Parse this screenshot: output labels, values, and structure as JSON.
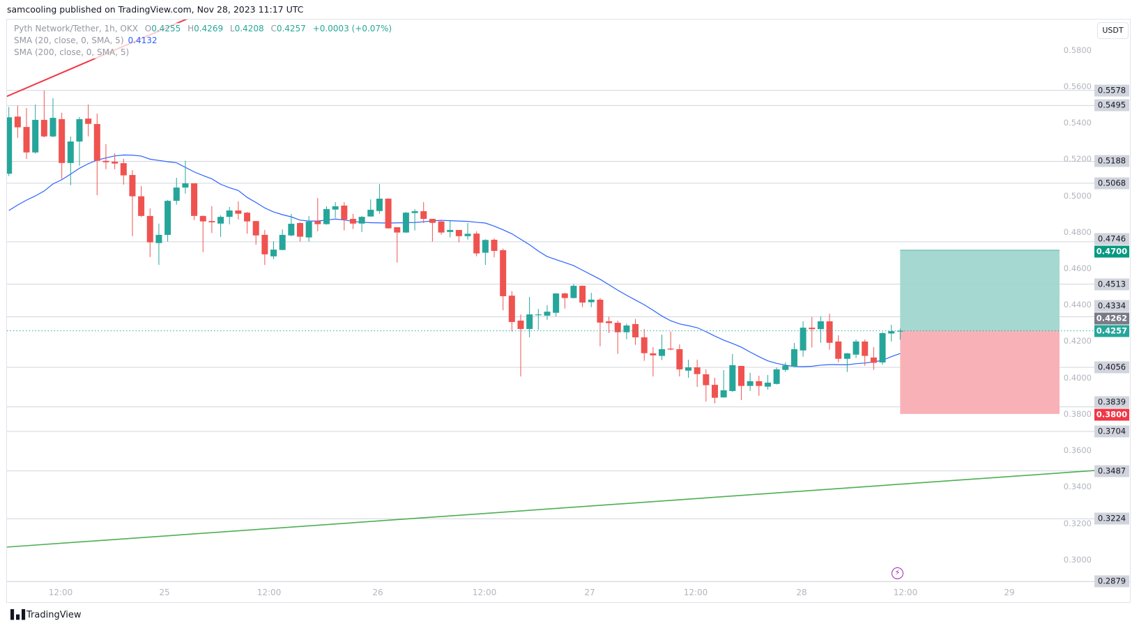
{
  "header": {
    "published": "samcooling published on TradingView.com, Nov 28, 2023 11:17 UTC"
  },
  "legend": {
    "symbol": "Pyth Network/Tether, 1h, OKX",
    "ohlc": [
      {
        "label": "O",
        "value": "0.4255"
      },
      {
        "label": "H",
        "value": "0.4269"
      },
      {
        "label": "L",
        "value": "0.4208"
      },
      {
        "label": "C",
        "value": "0.4257"
      }
    ],
    "change": "+0.0003 (+0.07%)",
    "sma20": {
      "label": "SMA (20, close, 0, SMA, 5)",
      "value": "0.4132"
    },
    "sma200": {
      "label": "SMA (200, close, 0, SMA, 5)"
    }
  },
  "currency_button": "USDT",
  "footer": {
    "logo_text": "TradingView",
    "event_icon": "lightning-icon"
  },
  "colors": {
    "up": "#26a69a",
    "down": "#ef5350",
    "sma": "#2962ff",
    "resistance_line": "#f23645",
    "support_line": "#4caf50",
    "target_fill": "#9fd6cd",
    "stop_fill": "#f8aeb3",
    "target_label": "#089981",
    "stop_label": "#f23645",
    "last_price_label": "#26a69a",
    "marker_label": "#787b86"
  },
  "chart_data": {
    "type": "candlestick",
    "interval": "1h",
    "price_ticks": [
      "0.5800",
      "0.5600",
      "0.5400",
      "0.5200",
      "0.5000",
      "0.4800",
      "0.4600",
      "0.4400",
      "0.4200",
      "0.4000",
      "0.3800",
      "0.3600",
      "0.3400",
      "0.3200",
      "0.3000"
    ],
    "time_labels": [
      "12:00",
      "25",
      "12:00",
      "26",
      "12:00",
      "27",
      "12:00",
      "28",
      "12:00",
      "29"
    ],
    "ylim": [
      0.2879,
      0.5975
    ],
    "candles_ohlc": [
      [
        0.512,
        0.5487,
        0.5107,
        0.543
      ],
      [
        0.5434,
        0.5494,
        0.5317,
        0.5375
      ],
      [
        0.5377,
        0.5481,
        0.5202,
        0.5237
      ],
      [
        0.5237,
        0.55,
        0.523,
        0.5416
      ],
      [
        0.5416,
        0.5577,
        0.532,
        0.5325
      ],
      [
        0.5325,
        0.5535,
        0.532,
        0.5427
      ],
      [
        0.542,
        0.5455,
        0.5091,
        0.5179
      ],
      [
        0.5179,
        0.5324,
        0.5057,
        0.5297
      ],
      [
        0.5297,
        0.5432,
        0.5164,
        0.542
      ],
      [
        0.5423,
        0.55,
        0.5325,
        0.5394
      ],
      [
        0.5393,
        0.5451,
        0.5002,
        0.5191
      ],
      [
        0.5191,
        0.5283,
        0.5145,
        0.5183
      ],
      [
        0.5186,
        0.5232,
        0.5145,
        0.5176
      ],
      [
        0.5178,
        0.5202,
        0.506,
        0.5111
      ],
      [
        0.5113,
        0.514,
        0.4777,
        0.4996
      ],
      [
        0.4996,
        0.5053,
        0.4882,
        0.4888
      ],
      [
        0.4888,
        0.4929,
        0.4662,
        0.4743
      ],
      [
        0.4739,
        0.4846,
        0.4619,
        0.4784
      ],
      [
        0.4784,
        0.4976,
        0.4747,
        0.4971
      ],
      [
        0.4971,
        0.5098,
        0.495,
        0.5044
      ],
      [
        0.5044,
        0.5191,
        0.5011,
        0.5067
      ],
      [
        0.5067,
        0.5067,
        0.4865,
        0.4888
      ],
      [
        0.4888,
        0.489,
        0.4689,
        0.4858
      ],
      [
        0.486,
        0.4942,
        0.4794,
        0.4853
      ],
      [
        0.4846,
        0.4891,
        0.4773,
        0.4883
      ],
      [
        0.4883,
        0.4937,
        0.4842,
        0.4918
      ],
      [
        0.4918,
        0.4968,
        0.4868,
        0.49
      ],
      [
        0.4906,
        0.491,
        0.4791,
        0.4858
      ],
      [
        0.486,
        0.486,
        0.473,
        0.4781
      ],
      [
        0.4784,
        0.4811,
        0.4619,
        0.4677
      ],
      [
        0.4666,
        0.4749,
        0.4651,
        0.4703
      ],
      [
        0.4701,
        0.4814,
        0.47,
        0.4784
      ],
      [
        0.4781,
        0.4899,
        0.4776,
        0.4845
      ],
      [
        0.4849,
        0.4853,
        0.4747,
        0.4774
      ],
      [
        0.477,
        0.4887,
        0.4747,
        0.4857
      ],
      [
        0.486,
        0.4987,
        0.4804,
        0.4843
      ],
      [
        0.4843,
        0.4941,
        0.484,
        0.4926
      ],
      [
        0.4923,
        0.4964,
        0.4877,
        0.4941
      ],
      [
        0.4945,
        0.4964,
        0.4808,
        0.4868
      ],
      [
        0.4872,
        0.4899,
        0.4816,
        0.4846
      ],
      [
        0.4846,
        0.4887,
        0.48,
        0.4883
      ],
      [
        0.4885,
        0.4979,
        0.4884,
        0.4922
      ],
      [
        0.4915,
        0.5063,
        0.49,
        0.4983
      ],
      [
        0.4983,
        0.4985,
        0.4818,
        0.482
      ],
      [
        0.4826,
        0.4826,
        0.4632,
        0.4797
      ],
      [
        0.4797,
        0.491,
        0.4795,
        0.4906
      ],
      [
        0.4904,
        0.4926,
        0.4808,
        0.4914
      ],
      [
        0.4914,
        0.4964,
        0.4849,
        0.4872
      ],
      [
        0.4872,
        0.4872,
        0.4747,
        0.485
      ],
      [
        0.4858,
        0.486,
        0.4785,
        0.4797
      ],
      [
        0.48,
        0.4862,
        0.477,
        0.4811
      ],
      [
        0.4811,
        0.4811,
        0.4743,
        0.4777
      ],
      [
        0.4777,
        0.4849,
        0.4758,
        0.479
      ],
      [
        0.4791,
        0.4803,
        0.4666,
        0.4682
      ],
      [
        0.4686,
        0.476,
        0.4619,
        0.4756
      ],
      [
        0.4757,
        0.4765,
        0.4661,
        0.4696
      ],
      [
        0.47,
        0.4709,
        0.437,
        0.4447
      ],
      [
        0.445,
        0.4475,
        0.4253,
        0.4305
      ],
      [
        0.4313,
        0.4347,
        0.4006,
        0.4267
      ],
      [
        0.4267,
        0.4443,
        0.4221,
        0.4347
      ],
      [
        0.4343,
        0.4377,
        0.4262,
        0.4347
      ],
      [
        0.434,
        0.4398,
        0.4317,
        0.4362
      ],
      [
        0.4356,
        0.4464,
        0.4336,
        0.4462
      ],
      [
        0.4462,
        0.4466,
        0.4379,
        0.4437
      ],
      [
        0.4437,
        0.4514,
        0.4435,
        0.4504
      ],
      [
        0.4504,
        0.4506,
        0.4387,
        0.4412
      ],
      [
        0.4414,
        0.4466,
        0.4387,
        0.4428
      ],
      [
        0.4428,
        0.4437,
        0.4172,
        0.4302
      ],
      [
        0.4309,
        0.4334,
        0.4245,
        0.4299
      ],
      [
        0.4301,
        0.4313,
        0.413,
        0.4249
      ],
      [
        0.4249,
        0.4296,
        0.4211,
        0.4286
      ],
      [
        0.4294,
        0.4322,
        0.418,
        0.4221
      ],
      [
        0.4221,
        0.4267,
        0.4092,
        0.4134
      ],
      [
        0.4133,
        0.4167,
        0.4006,
        0.4122
      ],
      [
        0.4119,
        0.4236,
        0.4096,
        0.4156
      ],
      [
        0.4159,
        0.4253,
        0.415,
        0.4154
      ],
      [
        0.4156,
        0.4182,
        0.4006,
        0.4045
      ],
      [
        0.4038,
        0.4098,
        0.3999,
        0.4056
      ],
      [
        0.4056,
        0.4098,
        0.3949,
        0.4019
      ],
      [
        0.4018,
        0.4045,
        0.3868,
        0.3958
      ],
      [
        0.396,
        0.3999,
        0.3858,
        0.3889
      ],
      [
        0.3891,
        0.4041,
        0.3889,
        0.393
      ],
      [
        0.3926,
        0.4129,
        0.392,
        0.4068
      ],
      [
        0.4064,
        0.4064,
        0.3877,
        0.3954
      ],
      [
        0.3954,
        0.4026,
        0.3927,
        0.398
      ],
      [
        0.398,
        0.401,
        0.39,
        0.3954
      ],
      [
        0.395,
        0.4014,
        0.3934,
        0.3972
      ],
      [
        0.3965,
        0.4055,
        0.3962,
        0.4045
      ],
      [
        0.4042,
        0.4083,
        0.4031,
        0.4066
      ],
      [
        0.406,
        0.419,
        0.4058,
        0.4156
      ],
      [
        0.4149,
        0.4309,
        0.4115,
        0.4274
      ],
      [
        0.4274,
        0.4333,
        0.4165,
        0.4266
      ],
      [
        0.4266,
        0.4336,
        0.4191,
        0.4309
      ],
      [
        0.4309,
        0.4351,
        0.4153,
        0.4191
      ],
      [
        0.4198,
        0.4232,
        0.4084,
        0.4103
      ],
      [
        0.4103,
        0.4135,
        0.4031,
        0.4133
      ],
      [
        0.4126,
        0.4209,
        0.4107,
        0.4198
      ],
      [
        0.4198,
        0.4209,
        0.4065,
        0.4119
      ],
      [
        0.411,
        0.4167,
        0.4042,
        0.4081
      ],
      [
        0.4083,
        0.425,
        0.407,
        0.4244
      ],
      [
        0.4242,
        0.429,
        0.4198,
        0.4255
      ],
      [
        0.4255,
        0.4269,
        0.4208,
        0.4257
      ]
    ],
    "sma20": [
      0.4918,
      0.4948,
      0.4975,
      0.4998,
      0.5025,
      0.5064,
      0.5087,
      0.5118,
      0.515,
      0.5175,
      0.5195,
      0.5207,
      0.5218,
      0.5223,
      0.5222,
      0.5217,
      0.52,
      0.5193,
      0.5186,
      0.518,
      0.5155,
      0.513,
      0.511,
      0.5092,
      0.5062,
      0.5043,
      0.5028,
      0.499,
      0.4962,
      0.4932,
      0.491,
      0.4895,
      0.4883,
      0.4865,
      0.486,
      0.486,
      0.4866,
      0.4871,
      0.4866,
      0.4858,
      0.4853,
      0.4851,
      0.485,
      0.4849,
      0.485,
      0.4851,
      0.4852,
      0.4856,
      0.4861,
      0.4864,
      0.4862,
      0.486,
      0.4858,
      0.4853,
      0.4849,
      0.4832,
      0.4812,
      0.479,
      0.476,
      0.473,
      0.4695,
      0.4665,
      0.4648,
      0.4632,
      0.4615,
      0.459,
      0.4565,
      0.454,
      0.451,
      0.448,
      0.4452,
      0.4426,
      0.44,
      0.437,
      0.4338,
      0.4312,
      0.4295,
      0.4285,
      0.4274,
      0.4252,
      0.4228,
      0.4206,
      0.4187,
      0.4167,
      0.414,
      0.4115,
      0.4092,
      0.4078,
      0.4068,
      0.4061,
      0.406,
      0.4062,
      0.4068,
      0.4071,
      0.4071,
      0.407,
      0.4076,
      0.408,
      0.4086,
      0.4095,
      0.4115,
      0.4132
    ],
    "trend_lines": [
      {
        "role": "resistance",
        "from_price": 0.5542,
        "to_price": 0.5975,
        "color": "#f23645"
      },
      {
        "role": "support",
        "from_price": 0.3068,
        "to_price": 0.3489,
        "color": "#4caf50"
      }
    ],
    "horizontal_levels": [
      "0.5578",
      "0.5495",
      "0.5188",
      "0.5068",
      "0.4746",
      "0.4513",
      "0.4334",
      "0.4056",
      "0.3839",
      "0.3704",
      "0.3487",
      "0.3224",
      "0.2879"
    ],
    "price_labels": [
      {
        "text": "0.5578",
        "kind": "level"
      },
      {
        "text": "0.5495",
        "kind": "level"
      },
      {
        "text": "0.5188",
        "kind": "level"
      },
      {
        "text": "0.5068",
        "kind": "level"
      },
      {
        "text": "0.4746",
        "kind": "level"
      },
      {
        "text": "0.4700",
        "kind": "target"
      },
      {
        "text": "0.4513",
        "kind": "level"
      },
      {
        "text": "0.4334",
        "kind": "level"
      },
      {
        "text": "0.4262",
        "kind": "marker"
      },
      {
        "text": "0.4257",
        "kind": "last"
      },
      {
        "text": "0.4056",
        "kind": "level"
      },
      {
        "text": "0.3839",
        "kind": "level"
      },
      {
        "text": "0.3800",
        "kind": "stop"
      },
      {
        "text": "0.3704",
        "kind": "level"
      },
      {
        "text": "0.3487",
        "kind": "level"
      },
      {
        "text": "0.3224",
        "kind": "level"
      },
      {
        "text": "0.2879",
        "kind": "level"
      }
    ],
    "long_position": {
      "entry": 0.4257,
      "target": 0.47,
      "stop": 0.38
    }
  }
}
